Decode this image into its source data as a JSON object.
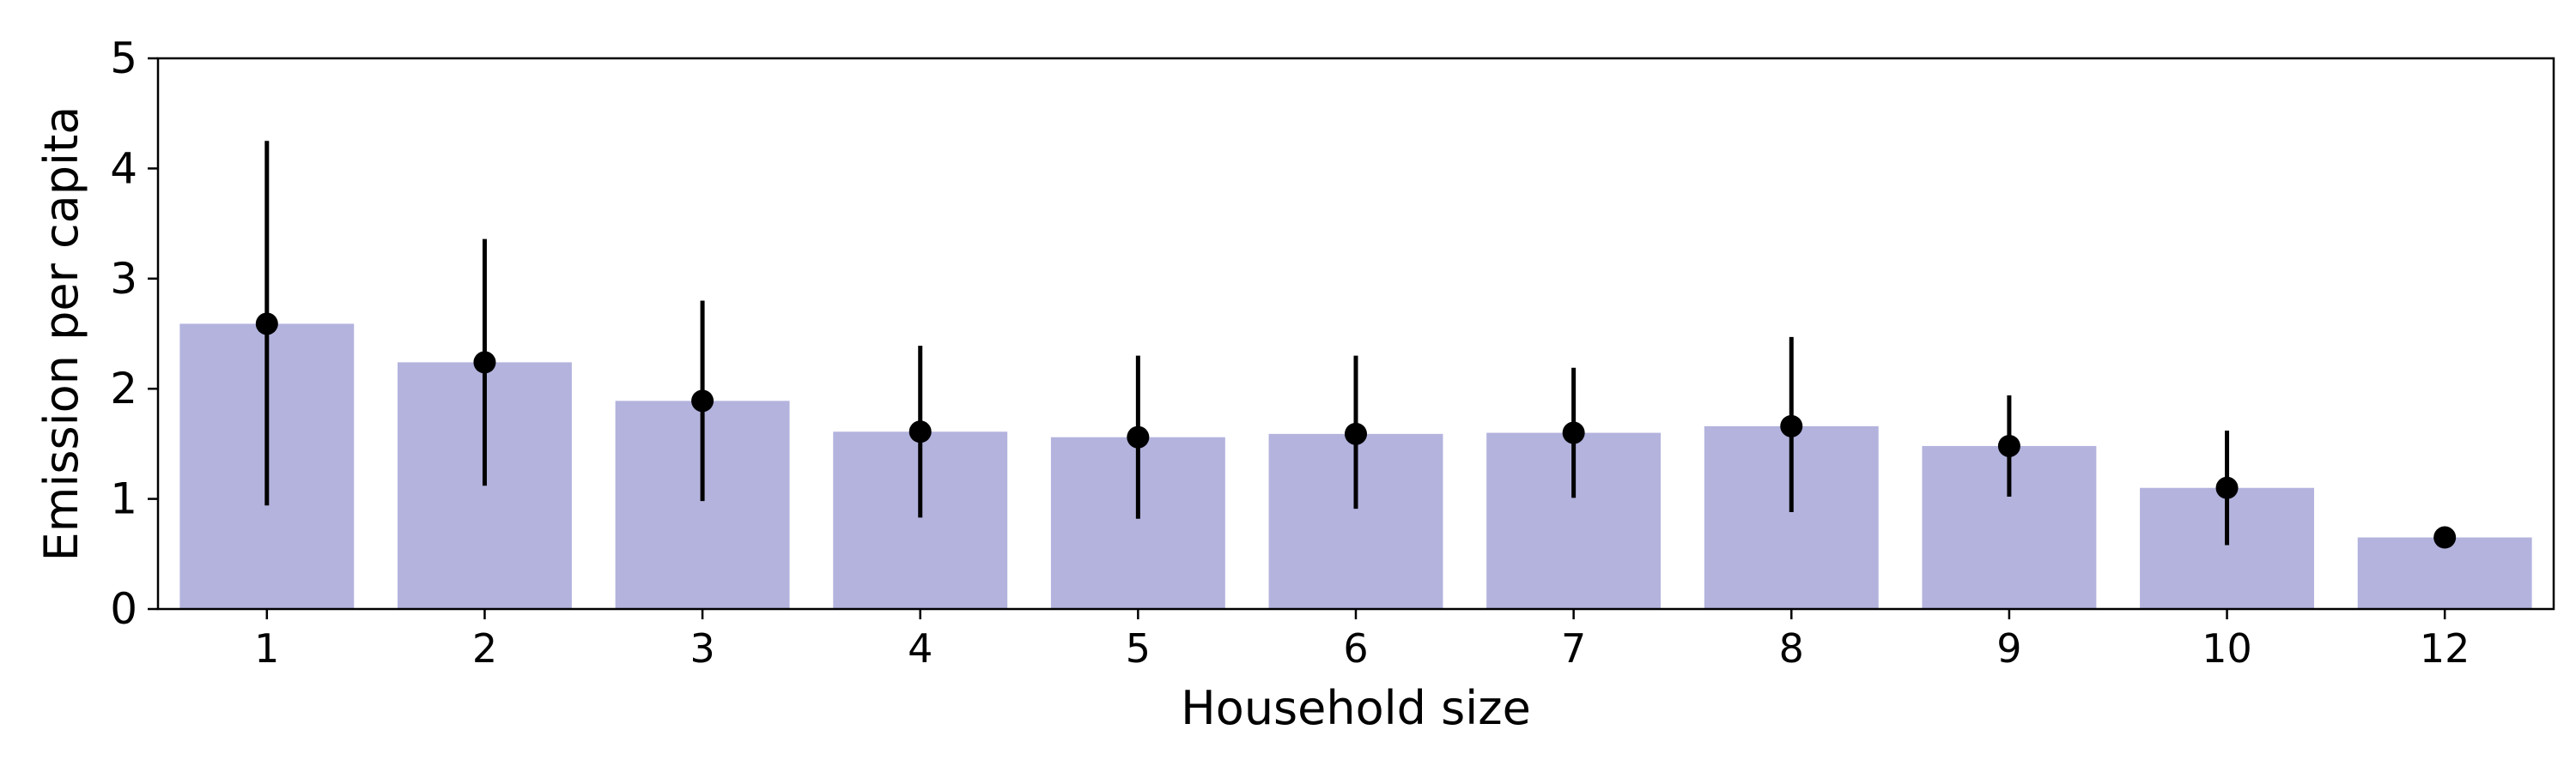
{
  "chart_data": {
    "type": "bar",
    "title": "",
    "xlabel": "Household size",
    "ylabel": "Emission per capita",
    "categories": [
      "1",
      "2",
      "3",
      "4",
      "5",
      "6",
      "7",
      "8",
      "9",
      "10",
      "12"
    ],
    "values": [
      2.59,
      2.24,
      1.89,
      1.61,
      1.56,
      1.59,
      1.6,
      1.66,
      1.48,
      1.1,
      0.65
    ],
    "error_low": [
      0.94,
      1.12,
      0.98,
      0.83,
      0.82,
      0.91,
      1.01,
      0.88,
      1.02,
      0.58,
      0.65
    ],
    "error_high": [
      4.25,
      3.36,
      2.8,
      2.39,
      2.3,
      2.3,
      2.19,
      2.47,
      1.94,
      1.62,
      0.65
    ],
    "ylim": [
      0,
      5
    ],
    "yticks": [
      "0",
      "1",
      "2",
      "3",
      "4",
      "5"
    ],
    "grid": false,
    "legend": "none",
    "colors": {
      "bar": "#b3b3de",
      "point": "#000000",
      "errorbar": "#000000",
      "axis": "#000000"
    }
  }
}
